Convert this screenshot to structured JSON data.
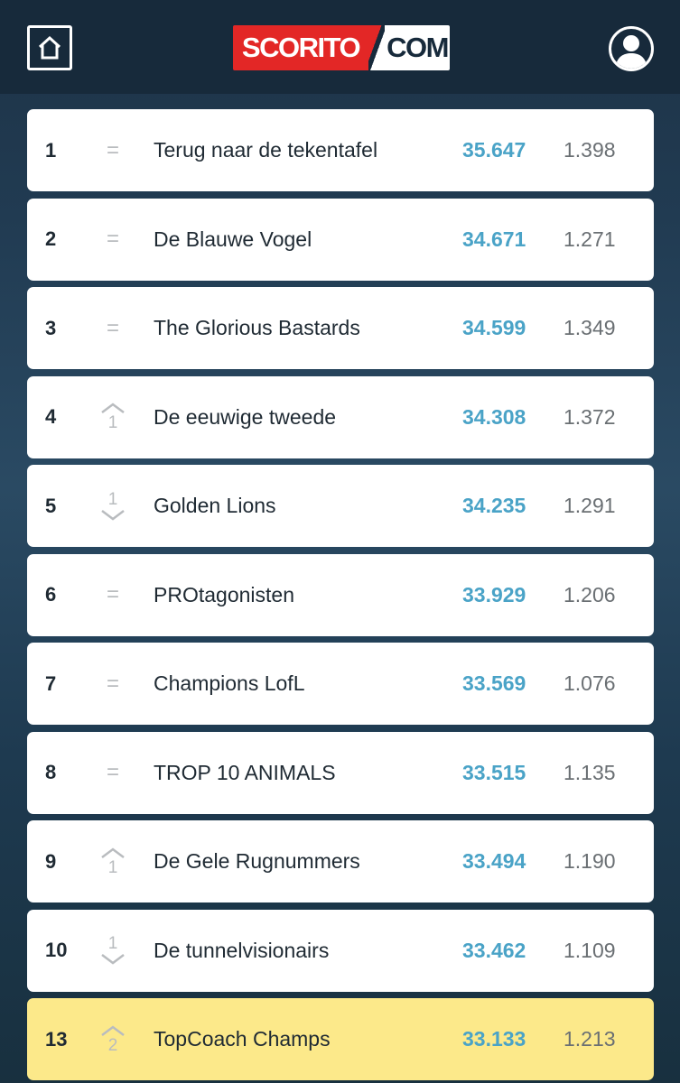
{
  "header": {
    "logo_left": "SCORITO",
    "logo_right": "COM"
  },
  "colors": {
    "header_bg": "#172a3b",
    "logo_red": "#e32726",
    "score_blue": "#4aa3c7",
    "highlight_yellow": "#fce98a"
  },
  "icons": {
    "home": "home-icon",
    "profile": "profile-icon",
    "up": "chevron-up-icon",
    "down": "chevron-down-icon"
  },
  "rows": [
    {
      "rank": "1",
      "change_type": "same",
      "change_label": "=",
      "change_value": "",
      "name": "Terug naar de tekentafel",
      "score": "35.647",
      "points": "1.398"
    },
    {
      "rank": "2",
      "change_type": "same",
      "change_label": "=",
      "change_value": "",
      "name": "De Blauwe Vogel",
      "score": "34.671",
      "points": "1.271"
    },
    {
      "rank": "3",
      "change_type": "same",
      "change_label": "=",
      "change_value": "",
      "name": "The Glorious Bastards",
      "score": "34.599",
      "points": "1.349"
    },
    {
      "rank": "4",
      "change_type": "up",
      "change_label": "",
      "change_value": "1",
      "name": "De eeuwige tweede",
      "score": "34.308",
      "points": "1.372"
    },
    {
      "rank": "5",
      "change_type": "down",
      "change_label": "",
      "change_value": "1",
      "name": "Golden Lions",
      "score": "34.235",
      "points": "1.291"
    },
    {
      "rank": "6",
      "change_type": "same",
      "change_label": "=",
      "change_value": "",
      "name": "PROtagonisten",
      "score": "33.929",
      "points": "1.206"
    },
    {
      "rank": "7",
      "change_type": "same",
      "change_label": "=",
      "change_value": "",
      "name": "Champions LofL",
      "score": "33.569",
      "points": "1.076"
    },
    {
      "rank": "8",
      "change_type": "same",
      "change_label": "=",
      "change_value": "",
      "name": "TROP 10 ANIMALS",
      "score": "33.515",
      "points": "1.135"
    },
    {
      "rank": "9",
      "change_type": "up",
      "change_label": "",
      "change_value": "1",
      "name": "De Gele Rugnummers",
      "score": "33.494",
      "points": "1.190"
    },
    {
      "rank": "10",
      "change_type": "down",
      "change_label": "",
      "change_value": "1",
      "name": "De tunnelvisionairs",
      "score": "33.462",
      "points": "1.109"
    },
    {
      "rank": "13",
      "change_type": "up",
      "change_label": "",
      "change_value": "2",
      "name": "TopCoach Champs",
      "score": "33.133",
      "points": "1.213",
      "highlight": true
    }
  ]
}
